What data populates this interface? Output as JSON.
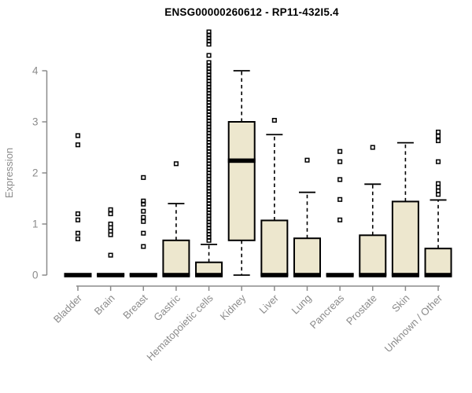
{
  "figure": {
    "title": "ENSG00000260612 - RP11-432I5.4"
  },
  "chart_data": {
    "type": "boxplot",
    "title": "ENSG00000260612 - RP11-432I5.4",
    "xlabel": "",
    "ylabel": "Expression",
    "ylim": [
      0,
      4.8
    ],
    "yticks": [
      0,
      1,
      2,
      3,
      4
    ],
    "grid": false,
    "legend": "none",
    "box_fill_color": "#EDE7CE",
    "box_line_color": "#000000",
    "axis_color": "#8B8B8B",
    "categories": [
      {
        "label": "Bladder",
        "q1": 0,
        "median": 0,
        "q3": 0.02,
        "whisker_low": 0,
        "whisker_high": 0.02,
        "outliers": [
          2.73,
          2.55,
          1.2,
          1.08,
          0.82,
          0.71
        ]
      },
      {
        "label": "Brain",
        "q1": 0,
        "median": 0,
        "q3": 0.02,
        "whisker_low": 0,
        "whisker_high": 0.02,
        "outliers": [
          1.28,
          1.2,
          1.0,
          0.93,
          0.86,
          0.79,
          0.39
        ]
      },
      {
        "label": "Breast",
        "q1": 0,
        "median": 0,
        "q3": 0.02,
        "whisker_low": 0,
        "whisker_high": 0.02,
        "outliers": [
          1.91,
          1.45,
          1.39,
          1.25,
          1.13,
          1.05,
          0.82,
          0.56
        ]
      },
      {
        "label": "Gastric",
        "q1": 0,
        "median": 0,
        "q3": 0.68,
        "whisker_low": 0,
        "whisker_high": 1.4,
        "outliers": [
          2.18
        ]
      },
      {
        "label": "Hematopoietic cells",
        "q1": 0,
        "median": 0,
        "q3": 0.25,
        "whisker_low": 0,
        "whisker_high": 0.6,
        "outliers": [
          4.76,
          4.7,
          4.64,
          4.58,
          4.52,
          4.3,
          4.16,
          4.1,
          4.04,
          3.98,
          3.92,
          3.86,
          3.8,
          3.74,
          3.68,
          3.62,
          3.56,
          3.5,
          3.44,
          3.38,
          3.32,
          3.26,
          3.2,
          3.14,
          3.08,
          3.02,
          2.96,
          2.9,
          2.84,
          2.78,
          2.72,
          2.66,
          2.6,
          2.54,
          2.48,
          2.42,
          2.36,
          2.3,
          2.24,
          2.18,
          2.12,
          2.06,
          2.0,
          1.94,
          1.88,
          1.82,
          1.76,
          1.7,
          1.64,
          1.58,
          1.52,
          1.46,
          1.4,
          1.34,
          1.28,
          1.22,
          1.16,
          1.1,
          1.04,
          0.98,
          0.92,
          0.86,
          0.8,
          0.74,
          0.68
        ]
      },
      {
        "label": "Kidney",
        "q1": 0.68,
        "median": 2.24,
        "q3": 3.0,
        "whisker_low": 0,
        "whisker_high": 4.0,
        "outliers": []
      },
      {
        "label": "Liver",
        "q1": 0,
        "median": 0,
        "q3": 1.07,
        "whisker_low": 0,
        "whisker_high": 2.75,
        "outliers": [
          3.03
        ]
      },
      {
        "label": "Lung",
        "q1": 0,
        "median": 0,
        "q3": 0.72,
        "whisker_low": 0,
        "whisker_high": 1.62,
        "outliers": [
          2.25
        ]
      },
      {
        "label": "Pancreas",
        "q1": 0,
        "median": 0,
        "q3": 0.02,
        "whisker_low": 0,
        "whisker_high": 0.02,
        "outliers": [
          2.42,
          2.22,
          1.87,
          1.48,
          1.08
        ]
      },
      {
        "label": "Prostate",
        "q1": 0,
        "median": 0,
        "q3": 0.78,
        "whisker_low": 0,
        "whisker_high": 1.78,
        "outliers": [
          2.5
        ]
      },
      {
        "label": "Skin",
        "q1": 0,
        "median": 0,
        "q3": 1.44,
        "whisker_low": 0,
        "whisker_high": 2.59,
        "outliers": []
      },
      {
        "label": "Unknown / Other",
        "q1": 0,
        "median": 0,
        "q3": 0.52,
        "whisker_low": 0,
        "whisker_high": 1.47,
        "outliers": [
          2.8,
          2.72,
          2.63,
          2.22,
          1.79,
          1.72,
          1.65,
          1.58
        ]
      }
    ]
  }
}
